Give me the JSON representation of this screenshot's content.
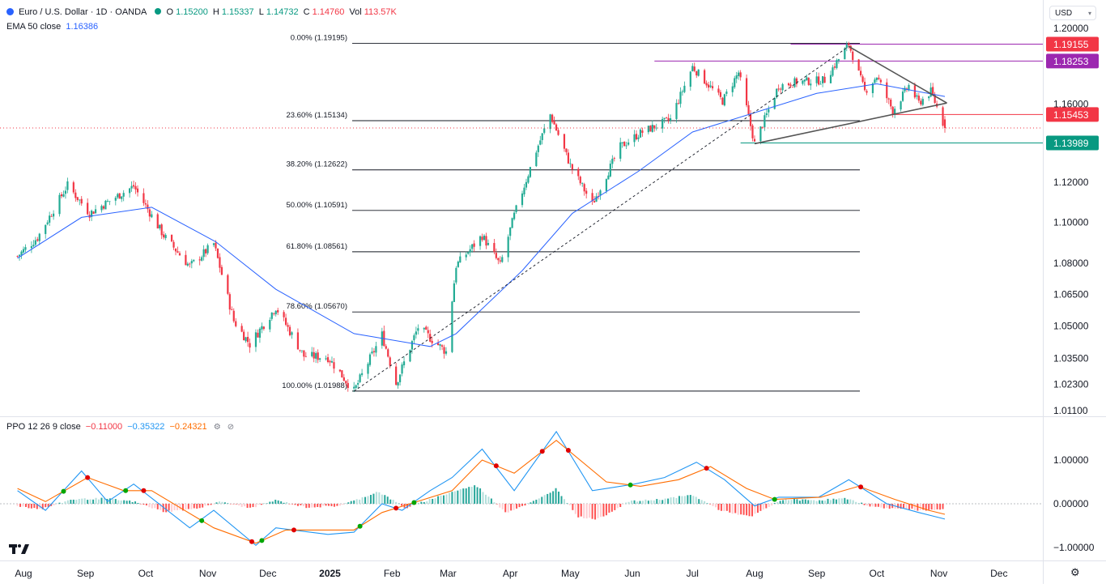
{
  "header": {
    "symbol": "Euro / U.S. Dollar · 1D · OANDA",
    "open_label": "O",
    "open": "1.15200",
    "high_label": "H",
    "high": "1.15337",
    "low_label": "L",
    "low": "1.14732",
    "close_label": "C",
    "close": "1.14760",
    "vol_label": "Vol",
    "vol": "113.57K",
    "currency": "USD"
  },
  "ema_legend": {
    "label": "EMA 50 close",
    "value": "1.16386"
  },
  "ppo_legend": {
    "label": "PPO 12 26 9 close",
    "ppo": "−0.11000",
    "ppo_line": "−0.35322",
    "signal": "−0.24321"
  },
  "colors": {
    "up": "#22ab94",
    "down": "#f23645",
    "ema": "#2962ff",
    "ppo_line": "#2196f3",
    "signal": "#ff6d00",
    "fib": "#131722",
    "resistance": "#9c27b0",
    "support_tag": "#089981",
    "current_tag": "#f23645",
    "triangle": "#555555"
  },
  "icons": {
    "logo": "tradingview-logo-icon",
    "settings": "gear-icon",
    "visibility": "eye-icon"
  },
  "chart_data": [
    {
      "type": "candlestick",
      "title": "Euro / U.S. Dollar · 1D · OANDA",
      "x_ticks": [
        "Aug",
        "Sep",
        "Oct",
        "Nov",
        "Dec",
        "2025",
        "Feb",
        "Mar",
        "Apr",
        "May",
        "Jun",
        "Jul",
        "Aug",
        "Sep",
        "Oct",
        "Nov",
        "Dec"
      ],
      "y_ticks": [
        "1.20000",
        "1.16000",
        "1.12000",
        "1.10000",
        "1.08000",
        "1.06500",
        "1.05000",
        "1.03500",
        "1.02300",
        "1.01100"
      ],
      "ylim": [
        1.005,
        1.205
      ],
      "y_scale": "log",
      "ohlc_latest": {
        "open": 1.152,
        "high": 1.15337,
        "low": 1.14732,
        "close": 1.1476
      },
      "price_path": [
        [
          "2024-07-29",
          1.0835
        ],
        [
          "2024-08-08",
          1.0925
        ],
        [
          "2024-08-23",
          1.1185
        ],
        [
          "2024-09-03",
          1.1045
        ],
        [
          "2024-09-25",
          1.118
        ],
        [
          "2024-10-10",
          1.0935
        ],
        [
          "2024-10-23",
          1.0785
        ],
        [
          "2024-11-04",
          1.0895
        ],
        [
          "2024-11-14",
          1.0525
        ],
        [
          "2024-11-22",
          1.0415
        ],
        [
          "2024-12-05",
          1.059
        ],
        [
          "2024-12-19",
          1.036
        ],
        [
          "2024-12-31",
          1.0355
        ],
        [
          "2025-01-13",
          1.0198
        ],
        [
          "2025-01-27",
          1.046
        ],
        [
          "2025-02-03",
          1.0235
        ],
        [
          "2025-02-14",
          1.0495
        ],
        [
          "2025-02-28",
          1.038
        ],
        [
          "2025-03-05",
          1.079
        ],
        [
          "2025-03-18",
          1.0935
        ],
        [
          "2025-03-27",
          1.079
        ],
        [
          "2025-04-03",
          1.1035
        ],
        [
          "2025-04-14",
          1.136
        ],
        [
          "2025-04-21",
          1.1545
        ],
        [
          "2025-05-01",
          1.1285
        ],
        [
          "2025-05-12",
          1.109
        ],
        [
          "2025-05-26",
          1.138
        ],
        [
          "2025-06-05",
          1.145
        ],
        [
          "2025-06-20",
          1.152
        ],
        [
          "2025-07-01",
          1.1795
        ],
        [
          "2025-07-16",
          1.1615
        ],
        [
          "2025-07-24",
          1.1765
        ],
        [
          "2025-08-01",
          1.1395
        ],
        [
          "2025-08-13",
          1.1695
        ],
        [
          "2025-08-22",
          1.1715
        ],
        [
          "2025-09-05",
          1.1725
        ],
        [
          "2025-09-17",
          1.1915
        ],
        [
          "2025-09-25",
          1.1665
        ],
        [
          "2025-10-01",
          1.1745
        ],
        [
          "2025-10-09",
          1.1565
        ],
        [
          "2025-10-17",
          1.1695
        ],
        [
          "2025-10-22",
          1.1605
        ],
        [
          "2025-10-28",
          1.1665
        ],
        [
          "2025-11-04",
          1.1476
        ]
      ],
      "ema50_path": [
        [
          "2024-07-29",
          1.0825
        ],
        [
          "2024-08-30",
          1.1025
        ],
        [
          "2024-10-04",
          1.1075
        ],
        [
          "2024-11-05",
          1.0905
        ],
        [
          "2024-12-05",
          1.0675
        ],
        [
          "2025-01-13",
          1.0465
        ],
        [
          "2025-02-20",
          1.0405
        ],
        [
          "2025-03-05",
          1.0465
        ],
        [
          "2025-04-07",
          1.0765
        ],
        [
          "2025-05-02",
          1.1045
        ],
        [
          "2025-06-04",
          1.1255
        ],
        [
          "2025-07-01",
          1.1455
        ],
        [
          "2025-08-01",
          1.1555
        ],
        [
          "2025-09-01",
          1.1655
        ],
        [
          "2025-10-01",
          1.1705
        ],
        [
          "2025-11-04",
          1.1639
        ]
      ],
      "fibonacci": [
        {
          "label": "0.00% (1.19195)",
          "level": 1.19195
        },
        {
          "label": "23.60% (1.15134)",
          "level": 1.15134
        },
        {
          "label": "38.20% (1.12622)",
          "level": 1.12622
        },
        {
          "label": "50.00% (1.10591)",
          "level": 1.10591
        },
        {
          "label": "61.80% (1.08561)",
          "level": 1.08561
        },
        {
          "label": "78.60% (1.05670)",
          "level": 1.0567
        },
        {
          "label": "100.00% (1.01988)",
          "level": 1.01988
        }
      ],
      "price_tags": [
        {
          "label": "1.19155",
          "value": 1.19155,
          "color": "#f23645"
        },
        {
          "label": "1.18253",
          "value": 1.18253,
          "color": "#9c27b0"
        },
        {
          "label": "1.15453",
          "value": 1.15453,
          "color": "#f23645"
        },
        {
          "label": "1.13989",
          "value": 1.13989,
          "color": "#089981"
        }
      ],
      "horizontal_lines": [
        {
          "value": 1.19155,
          "from": "2025-08-19",
          "to": "2025-11-30",
          "color": "#9c27b0"
        },
        {
          "value": 1.18253,
          "from": "2025-06-12",
          "to": "2025-11-30",
          "color": "#9c27b0"
        },
        {
          "value": 1.15453,
          "from": "2025-10-08",
          "to": "2025-11-30",
          "color": "#f23645"
        },
        {
          "value": 1.13989,
          "from": "2025-07-25",
          "to": "2025-11-30",
          "color": "#089981"
        }
      ],
      "triangle": {
        "upper": [
          [
            "2025-09-17",
            1.1903
          ],
          [
            "2025-11-05",
            1.1605
          ]
        ],
        "lower": [
          [
            "2025-08-01",
            1.1395
          ],
          [
            "2025-11-05",
            1.1605
          ]
        ]
      },
      "trend_line": [
        [
          "2025-01-13",
          1.0198
        ],
        [
          "2025-09-17",
          1.1903
        ]
      ],
      "current_price": 1.1476
    },
    {
      "type": "line",
      "title": "PPO 12 26 9 close",
      "y_ticks": [
        "1.00000",
        "0.00000",
        "−1.00000"
      ],
      "ylim": [
        -1.1,
        1.6
      ],
      "series": [
        {
          "name": "PPO",
          "points": [
            [
              "2024-07-29",
              0.3
            ],
            [
              "2024-08-12",
              -0.15
            ],
            [
              "2024-08-30",
              0.75
            ],
            [
              "2024-09-12",
              0.05
            ],
            [
              "2024-09-25",
              0.45
            ],
            [
              "2024-10-23",
              -0.55
            ],
            [
              "2024-11-04",
              -0.15
            ],
            [
              "2024-11-25",
              -0.95
            ],
            [
              "2024-12-05",
              -0.55
            ],
            [
              "2024-12-31",
              -0.7
            ],
            [
              "2025-01-13",
              -0.65
            ],
            [
              "2025-01-27",
              0.0
            ],
            [
              "2025-02-06",
              -0.15
            ],
            [
              "2025-02-20",
              0.3
            ],
            [
              "2025-03-03",
              0.6
            ],
            [
              "2025-03-18",
              1.25
            ],
            [
              "2025-04-03",
              0.3
            ],
            [
              "2025-04-24",
              1.65
            ],
            [
              "2025-05-12",
              0.3
            ],
            [
              "2025-06-02",
              0.45
            ],
            [
              "2025-06-17",
              0.6
            ],
            [
              "2025-07-03",
              0.95
            ],
            [
              "2025-07-17",
              0.55
            ],
            [
              "2025-08-01",
              -0.05
            ],
            [
              "2025-08-13",
              0.15
            ],
            [
              "2025-09-02",
              0.15
            ],
            [
              "2025-09-17",
              0.55
            ],
            [
              "2025-10-06",
              0.0
            ],
            [
              "2025-10-22",
              -0.2
            ],
            [
              "2025-11-04",
              -0.35
            ]
          ]
        },
        {
          "name": "Signal",
          "points": [
            [
              "2024-07-29",
              0.35
            ],
            [
              "2024-08-12",
              0.05
            ],
            [
              "2024-09-02",
              0.6
            ],
            [
              "2024-09-20",
              0.3
            ],
            [
              "2024-10-04",
              0.3
            ],
            [
              "2024-11-04",
              -0.55
            ],
            [
              "2024-11-25",
              -0.9
            ],
            [
              "2024-12-10",
              -0.6
            ],
            [
              "2025-01-13",
              -0.6
            ],
            [
              "2025-01-27",
              -0.2
            ],
            [
              "2025-02-10",
              0.0
            ],
            [
              "2025-03-03",
              0.3
            ],
            [
              "2025-03-18",
              1.0
            ],
            [
              "2025-04-03",
              0.7
            ],
            [
              "2025-04-24",
              1.45
            ],
            [
              "2025-05-19",
              0.5
            ],
            [
              "2025-06-05",
              0.4
            ],
            [
              "2025-06-24",
              0.55
            ],
            [
              "2025-07-10",
              0.85
            ],
            [
              "2025-07-28",
              0.35
            ],
            [
              "2025-08-11",
              0.1
            ],
            [
              "2025-09-03",
              0.15
            ],
            [
              "2025-09-22",
              0.4
            ],
            [
              "2025-10-10",
              0.1
            ],
            [
              "2025-10-27",
              -0.15
            ],
            [
              "2025-11-04",
              -0.24
            ]
          ]
        }
      ],
      "histogram": [
        [
          "2024-07-29",
          -0.05
        ],
        [
          "2024-08-10",
          -0.12
        ],
        [
          "2024-08-25",
          0.1
        ],
        [
          "2024-09-10",
          0.12
        ],
        [
          "2024-09-25",
          0.05
        ],
        [
          "2024-10-10",
          -0.18
        ],
        [
          "2024-10-25",
          -0.12
        ],
        [
          "2024-11-08",
          0.05
        ],
        [
          "2024-11-22",
          -0.1
        ],
        [
          "2024-12-05",
          0.08
        ],
        [
          "2024-12-20",
          -0.08
        ],
        [
          "2025-01-05",
          -0.05
        ],
        [
          "2025-01-15",
          0.1
        ],
        [
          "2025-01-25",
          0.28
        ],
        [
          "2025-02-08",
          -0.1
        ],
        [
          "2025-02-20",
          0.1
        ],
        [
          "2025-03-05",
          0.3
        ],
        [
          "2025-03-15",
          0.42
        ],
        [
          "2025-03-30",
          -0.2
        ],
        [
          "2025-04-15",
          0.1
        ],
        [
          "2025-04-24",
          0.35
        ],
        [
          "2025-05-05",
          -0.3
        ],
        [
          "2025-05-15",
          -0.35
        ],
        [
          "2025-05-30",
          0.05
        ],
        [
          "2025-06-15",
          0.1
        ],
        [
          "2025-07-01",
          0.2
        ],
        [
          "2025-07-15",
          -0.15
        ],
        [
          "2025-07-30",
          -0.3
        ],
        [
          "2025-08-15",
          0.1
        ],
        [
          "2025-09-01",
          0.08
        ],
        [
          "2025-09-15",
          0.12
        ],
        [
          "2025-09-30",
          -0.08
        ],
        [
          "2025-10-15",
          -0.12
        ],
        [
          "2025-10-25",
          -0.15
        ],
        [
          "2025-11-04",
          -0.11
        ]
      ]
    }
  ]
}
